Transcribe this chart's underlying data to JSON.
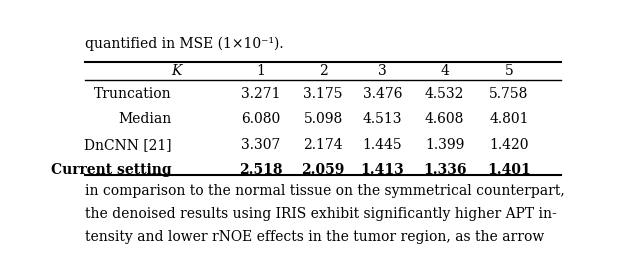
{
  "header_text": "quantified in MSE (1×10⁻¹).",
  "col_header": [
    "K",
    "1",
    "2",
    "3",
    "4",
    "5"
  ],
  "rows": [
    {
      "label": "Truncation",
      "values": [
        "3.271",
        "3.175",
        "3.476",
        "4.532",
        "5.758"
      ],
      "bold": false
    },
    {
      "label": "Median",
      "values": [
        "6.080",
        "5.098",
        "4.513",
        "4.608",
        "4.801"
      ],
      "bold": false
    },
    {
      "label": "DnCNN [21]",
      "values": [
        "3.307",
        "2.174",
        "1.445",
        "1.399",
        "1.420"
      ],
      "bold": false
    },
    {
      "label": "Current setting",
      "values": [
        "2.518",
        "2.059",
        "1.413",
        "1.336",
        "1.401"
      ],
      "bold": true
    }
  ],
  "footer_lines": [
    "in comparison to the normal tissue on the symmetrical counterpart,",
    "the denoised results using IRIS exhibit significantly higher APT in-",
    "tensity and lower rNOE effects in the tumor region, as the arrow"
  ],
  "background_color": "#ffffff",
  "text_color": "#000000",
  "font_size": 10
}
